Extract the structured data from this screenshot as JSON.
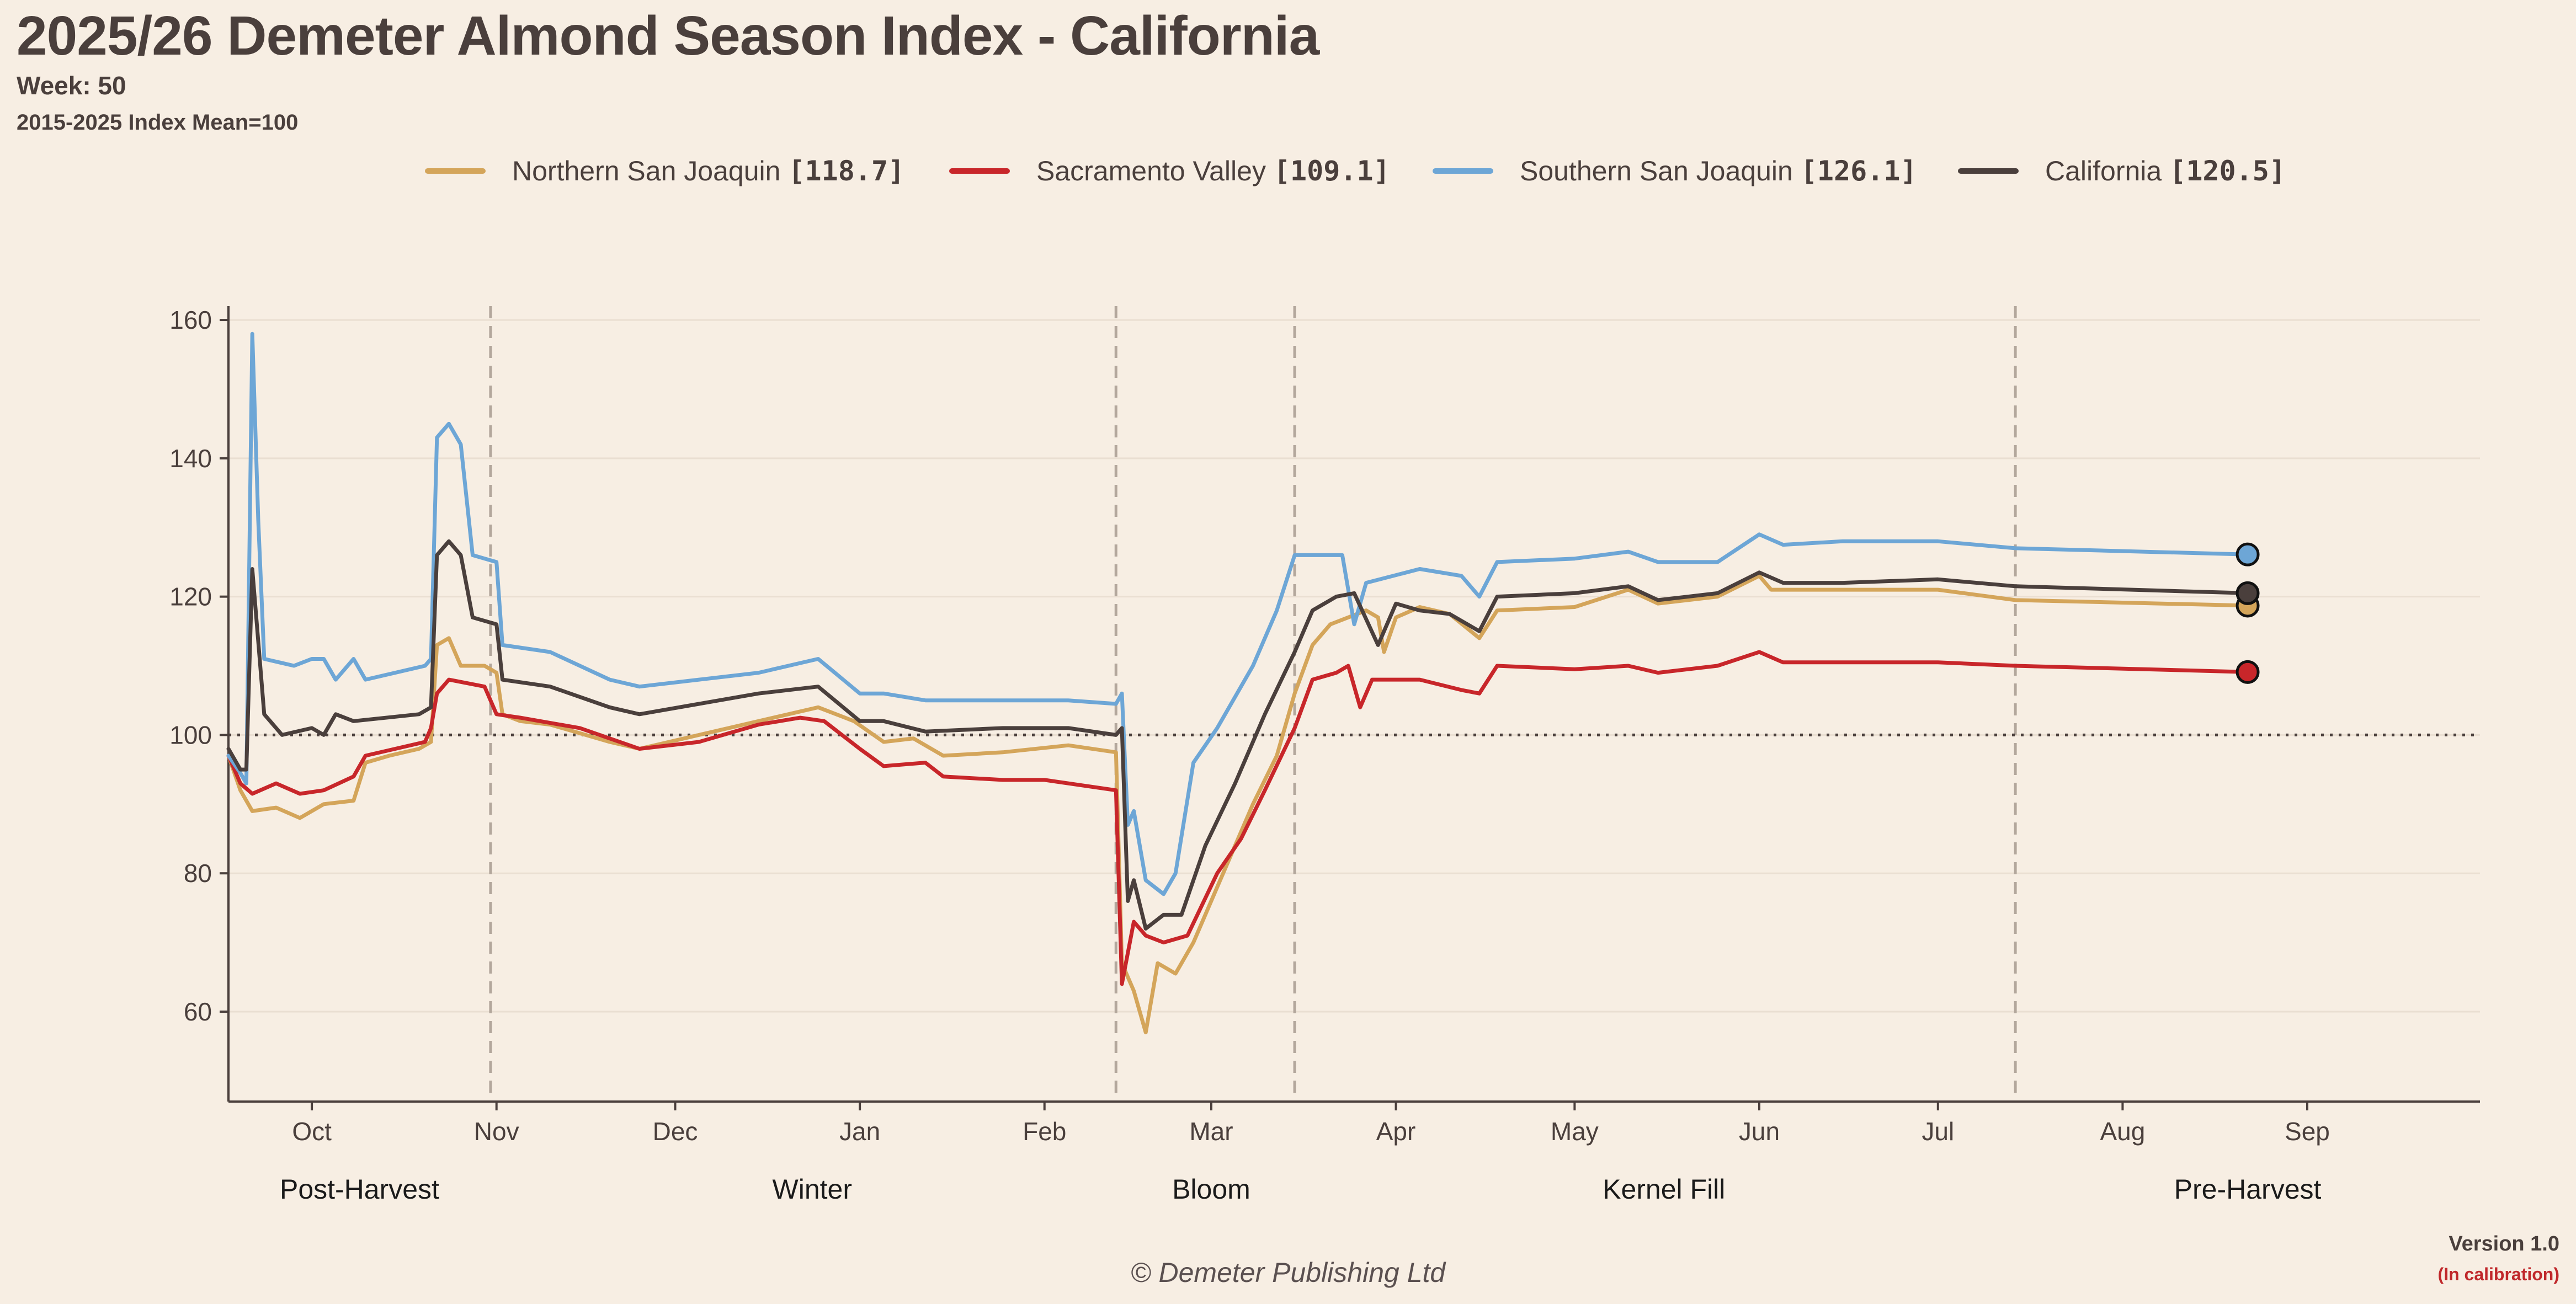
{
  "header": {
    "title": "2025/26 Demeter Almond Season Index - California",
    "week": "Week: 50",
    "index_note": "2015-2025 Index Mean=100"
  },
  "footer": {
    "copyright": "© Demeter Publishing Ltd",
    "version": "Version 1.0",
    "status": "(In calibration)"
  },
  "chart_data": {
    "type": "line",
    "title": "2025/26 Demeter Almond Season Index - California",
    "xlabel": "",
    "ylabel": "",
    "x_type": "date",
    "xlim": [
      "2025-09-17",
      "2026-09-30"
    ],
    "ylim": [
      47,
      162
    ],
    "yticks": [
      60,
      80,
      100,
      120,
      140,
      160
    ],
    "xticks": [
      {
        "date": "2025-10-01",
        "label": "Oct"
      },
      {
        "date": "2025-11-01",
        "label": "Nov"
      },
      {
        "date": "2025-12-01",
        "label": "Dec"
      },
      {
        "date": "2026-01-01",
        "label": "Jan"
      },
      {
        "date": "2026-02-01",
        "label": "Feb"
      },
      {
        "date": "2026-03-01",
        "label": "Mar"
      },
      {
        "date": "2026-04-01",
        "label": "Apr"
      },
      {
        "date": "2026-05-01",
        "label": "May"
      },
      {
        "date": "2026-06-01",
        "label": "Jun"
      },
      {
        "date": "2026-07-01",
        "label": "Jul"
      },
      {
        "date": "2026-08-01",
        "label": "Aug"
      },
      {
        "date": "2026-09-01",
        "label": "Sep"
      }
    ],
    "reference_line": {
      "y": 100,
      "style": "dotted"
    },
    "phase_boundaries": [
      "2025-10-31",
      "2026-02-13",
      "2026-03-15",
      "2026-07-14"
    ],
    "phases": [
      {
        "label": "Post-Harvest",
        "date": "2025-10-09"
      },
      {
        "label": "Winter",
        "date": "2025-12-24"
      },
      {
        "label": "Bloom",
        "date": "2026-03-01"
      },
      {
        "label": "Kernel Fill",
        "date": "2026-05-16"
      },
      {
        "label": "Pre-Harvest",
        "date": "2026-08-22"
      }
    ],
    "grid": "horizontal",
    "legend_position": "top-center",
    "series": [
      {
        "name": "Northern San Joaquin",
        "latest": "[118.7]",
        "color": "#d4a55a",
        "points": [
          [
            "2025-09-17",
            97
          ],
          [
            "2025-09-19",
            92
          ],
          [
            "2025-09-21",
            89
          ],
          [
            "2025-09-25",
            89.5
          ],
          [
            "2025-09-29",
            88
          ],
          [
            "2025-10-03",
            90
          ],
          [
            "2025-10-08",
            90.5
          ],
          [
            "2025-10-10",
            96
          ],
          [
            "2025-10-14",
            97
          ],
          [
            "2025-10-19",
            98
          ],
          [
            "2025-10-21",
            99
          ],
          [
            "2025-10-22",
            113
          ],
          [
            "2025-10-24",
            114
          ],
          [
            "2025-10-26",
            110
          ],
          [
            "2025-10-30",
            110
          ],
          [
            "2025-11-01",
            109
          ],
          [
            "2025-11-02",
            103
          ],
          [
            "2025-11-05",
            102
          ],
          [
            "2025-11-10",
            101.5
          ],
          [
            "2025-11-20",
            99
          ],
          [
            "2025-11-25",
            98
          ],
          [
            "2025-12-05",
            100
          ],
          [
            "2025-12-15",
            102
          ],
          [
            "2025-12-25",
            104
          ],
          [
            "2025-12-31",
            102
          ],
          [
            "2026-01-05",
            99
          ],
          [
            "2026-01-10",
            99.5
          ],
          [
            "2026-01-15",
            97
          ],
          [
            "2026-01-25",
            97.5
          ],
          [
            "2026-02-05",
            98.5
          ],
          [
            "2026-02-13",
            97.5
          ],
          [
            "2026-02-14",
            67
          ],
          [
            "2026-02-16",
            63
          ],
          [
            "2026-02-18",
            57
          ],
          [
            "2026-02-20",
            67
          ],
          [
            "2026-02-23",
            65.5
          ],
          [
            "2026-02-26",
            70
          ],
          [
            "2026-03-02",
            78
          ],
          [
            "2026-03-08",
            90
          ],
          [
            "2026-03-12",
            97
          ],
          [
            "2026-03-15",
            106
          ],
          [
            "2026-03-18",
            113
          ],
          [
            "2026-03-21",
            116
          ],
          [
            "2026-03-27",
            118
          ],
          [
            "2026-03-29",
            117
          ],
          [
            "2026-03-30",
            112
          ],
          [
            "2026-04-01",
            117
          ],
          [
            "2026-04-05",
            118.5
          ],
          [
            "2026-04-10",
            117.5
          ],
          [
            "2026-04-15",
            114
          ],
          [
            "2026-04-18",
            118
          ],
          [
            "2026-05-01",
            118.5
          ],
          [
            "2026-05-10",
            121
          ],
          [
            "2026-05-15",
            119
          ],
          [
            "2026-05-25",
            120
          ],
          [
            "2026-06-01",
            123
          ],
          [
            "2026-06-03",
            121
          ],
          [
            "2026-06-15",
            121
          ],
          [
            "2026-07-01",
            121
          ],
          [
            "2026-07-14",
            119.5
          ],
          [
            "2026-08-22",
            118.7
          ]
        ]
      },
      {
        "name": "Sacramento Valley",
        "latest": "[109.1]",
        "color": "#c8262a",
        "points": [
          [
            "2025-09-17",
            97
          ],
          [
            "2025-09-19",
            93
          ],
          [
            "2025-09-21",
            91.5
          ],
          [
            "2025-09-25",
            93
          ],
          [
            "2025-09-29",
            91.5
          ],
          [
            "2025-10-03",
            92
          ],
          [
            "2025-10-08",
            94
          ],
          [
            "2025-10-10",
            97
          ],
          [
            "2025-10-20",
            99
          ],
          [
            "2025-10-21",
            101
          ],
          [
            "2025-10-22",
            106
          ],
          [
            "2025-10-24",
            108
          ],
          [
            "2025-10-30",
            107
          ],
          [
            "2025-11-01",
            103
          ],
          [
            "2025-11-05",
            102.5
          ],
          [
            "2025-11-15",
            101
          ],
          [
            "2025-11-25",
            98
          ],
          [
            "2025-12-05",
            99
          ],
          [
            "2025-12-15",
            101.5
          ],
          [
            "2025-12-22",
            102.5
          ],
          [
            "2025-12-26",
            102
          ],
          [
            "2026-01-01",
            98
          ],
          [
            "2026-01-05",
            95.5
          ],
          [
            "2026-01-12",
            96
          ],
          [
            "2026-01-15",
            94
          ],
          [
            "2026-01-25",
            93.5
          ],
          [
            "2026-02-01",
            93.5
          ],
          [
            "2026-02-13",
            92
          ],
          [
            "2026-02-14",
            64
          ],
          [
            "2026-02-16",
            73
          ],
          [
            "2026-02-18",
            71
          ],
          [
            "2026-02-21",
            70
          ],
          [
            "2026-02-25",
            71
          ],
          [
            "2026-03-02",
            80
          ],
          [
            "2026-03-06",
            85
          ],
          [
            "2026-03-10",
            92
          ],
          [
            "2026-03-15",
            101
          ],
          [
            "2026-03-18",
            108
          ],
          [
            "2026-03-22",
            109
          ],
          [
            "2026-03-24",
            110
          ],
          [
            "2026-03-26",
            104
          ],
          [
            "2026-03-28",
            108
          ],
          [
            "2026-04-05",
            108
          ],
          [
            "2026-04-12",
            106.5
          ],
          [
            "2026-04-15",
            106
          ],
          [
            "2026-04-18",
            110
          ],
          [
            "2026-05-01",
            109.5
          ],
          [
            "2026-05-10",
            110
          ],
          [
            "2026-05-15",
            109
          ],
          [
            "2026-05-25",
            110
          ],
          [
            "2026-06-01",
            112
          ],
          [
            "2026-06-05",
            110.5
          ],
          [
            "2026-06-15",
            110.5
          ],
          [
            "2026-07-01",
            110.5
          ],
          [
            "2026-07-14",
            110
          ],
          [
            "2026-08-22",
            109.1
          ]
        ]
      },
      {
        "name": "Southern San Joaquin",
        "latest": "[126.1]",
        "color": "#6da6d6",
        "points": [
          [
            "2025-09-17",
            97
          ],
          [
            "2025-09-19",
            94.5
          ],
          [
            "2025-09-20",
            93
          ],
          [
            "2025-09-21",
            158
          ],
          [
            "2025-09-22",
            131
          ],
          [
            "2025-09-23",
            111
          ],
          [
            "2025-09-28",
            110
          ],
          [
            "2025-10-01",
            111
          ],
          [
            "2025-10-03",
            111
          ],
          [
            "2025-10-05",
            108
          ],
          [
            "2025-10-08",
            111
          ],
          [
            "2025-10-10",
            108
          ],
          [
            "2025-10-20",
            110
          ],
          [
            "2025-10-21",
            111
          ],
          [
            "2025-10-22",
            143
          ],
          [
            "2025-10-24",
            145
          ],
          [
            "2025-10-26",
            142
          ],
          [
            "2025-10-28",
            126
          ],
          [
            "2025-11-01",
            125
          ],
          [
            "2025-11-02",
            113
          ],
          [
            "2025-11-10",
            112
          ],
          [
            "2025-11-20",
            108
          ],
          [
            "2025-11-25",
            107
          ],
          [
            "2025-12-05",
            108
          ],
          [
            "2025-12-15",
            109
          ],
          [
            "2025-12-25",
            111
          ],
          [
            "2026-01-01",
            106
          ],
          [
            "2026-01-05",
            106
          ],
          [
            "2026-01-12",
            105
          ],
          [
            "2026-01-25",
            105
          ],
          [
            "2026-02-05",
            105
          ],
          [
            "2026-02-13",
            104.5
          ],
          [
            "2026-02-14",
            106
          ],
          [
            "2026-02-15",
            87
          ],
          [
            "2026-02-16",
            89
          ],
          [
            "2026-02-18",
            79
          ],
          [
            "2026-02-21",
            77
          ],
          [
            "2026-02-23",
            80
          ],
          [
            "2026-02-26",
            96
          ],
          [
            "2026-03-02",
            101
          ],
          [
            "2026-03-08",
            110
          ],
          [
            "2026-03-12",
            118
          ],
          [
            "2026-03-15",
            126
          ],
          [
            "2026-03-23",
            126
          ],
          [
            "2026-03-25",
            116
          ],
          [
            "2026-03-27",
            122
          ],
          [
            "2026-04-05",
            124
          ],
          [
            "2026-04-12",
            123
          ],
          [
            "2026-04-15",
            120
          ],
          [
            "2026-04-18",
            125
          ],
          [
            "2026-05-01",
            125.5
          ],
          [
            "2026-05-10",
            126.5
          ],
          [
            "2026-05-15",
            125
          ],
          [
            "2026-05-25",
            125
          ],
          [
            "2026-06-01",
            129
          ],
          [
            "2026-06-05",
            127.5
          ],
          [
            "2026-06-15",
            128
          ],
          [
            "2026-07-01",
            128
          ],
          [
            "2026-07-14",
            127
          ],
          [
            "2026-08-22",
            126.1
          ]
        ]
      },
      {
        "name": "California",
        "latest": "[120.5]",
        "color": "#4a3f3c",
        "points": [
          [
            "2025-09-17",
            98
          ],
          [
            "2025-09-19",
            95
          ],
          [
            "2025-09-20",
            95
          ],
          [
            "2025-09-21",
            124
          ],
          [
            "2025-09-23",
            103
          ],
          [
            "2025-09-26",
            100
          ],
          [
            "2025-10-01",
            101
          ],
          [
            "2025-10-03",
            100
          ],
          [
            "2025-10-05",
            103
          ],
          [
            "2025-10-08",
            102
          ],
          [
            "2025-10-19",
            103
          ],
          [
            "2025-10-21",
            104
          ],
          [
            "2025-10-22",
            126
          ],
          [
            "2025-10-24",
            128
          ],
          [
            "2025-10-26",
            126
          ],
          [
            "2025-10-28",
            117
          ],
          [
            "2025-11-01",
            116
          ],
          [
            "2025-11-02",
            108
          ],
          [
            "2025-11-10",
            107
          ],
          [
            "2025-11-20",
            104
          ],
          [
            "2025-11-25",
            103
          ],
          [
            "2025-12-05",
            104.5
          ],
          [
            "2025-12-15",
            106
          ],
          [
            "2025-12-25",
            107
          ],
          [
            "2026-01-01",
            102
          ],
          [
            "2026-01-05",
            102
          ],
          [
            "2026-01-12",
            100.5
          ],
          [
            "2026-01-25",
            101
          ],
          [
            "2026-02-05",
            101
          ],
          [
            "2026-02-13",
            100
          ],
          [
            "2026-02-14",
            101
          ],
          [
            "2026-02-15",
            76
          ],
          [
            "2026-02-16",
            79
          ],
          [
            "2026-02-18",
            72
          ],
          [
            "2026-02-21",
            74
          ],
          [
            "2026-02-24",
            74
          ],
          [
            "2026-02-28",
            84
          ],
          [
            "2026-03-05",
            93
          ],
          [
            "2026-03-10",
            103
          ],
          [
            "2026-03-15",
            112
          ],
          [
            "2026-03-18",
            118
          ],
          [
            "2026-03-22",
            120
          ],
          [
            "2026-03-25",
            120.5
          ],
          [
            "2026-03-29",
            113
          ],
          [
            "2026-04-01",
            119
          ],
          [
            "2026-04-05",
            118
          ],
          [
            "2026-04-10",
            117.5
          ],
          [
            "2026-04-15",
            115
          ],
          [
            "2026-04-18",
            120
          ],
          [
            "2026-05-01",
            120.5
          ],
          [
            "2026-05-10",
            121.5
          ],
          [
            "2026-05-15",
            119.5
          ],
          [
            "2026-05-25",
            120.5
          ],
          [
            "2026-06-01",
            123.5
          ],
          [
            "2026-06-05",
            122
          ],
          [
            "2026-06-15",
            122
          ],
          [
            "2026-07-01",
            122.5
          ],
          [
            "2026-07-14",
            121.5
          ],
          [
            "2026-08-22",
            120.5
          ]
        ]
      }
    ]
  }
}
